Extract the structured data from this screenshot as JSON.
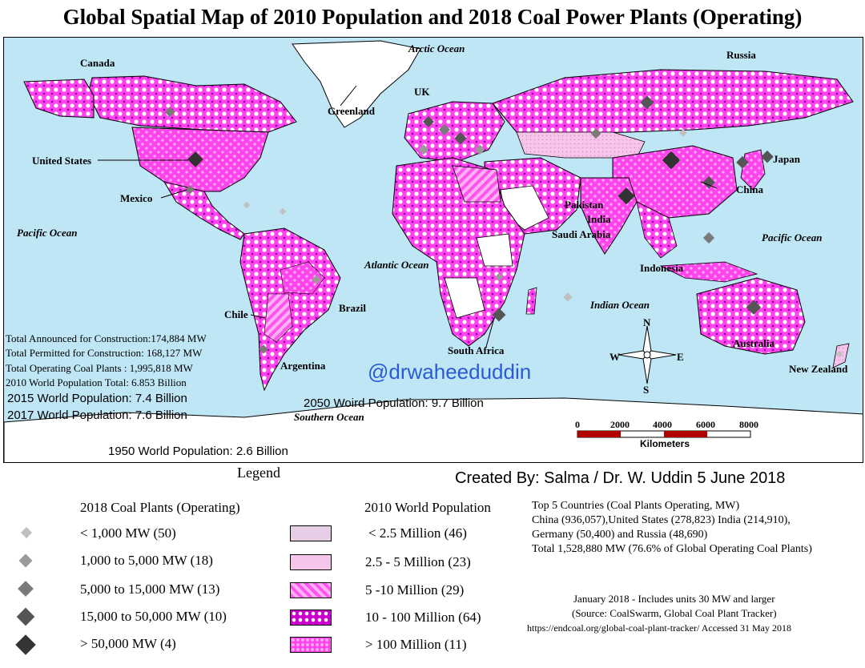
{
  "title": "Global Spatial Map of 2010 Population and 2018 Coal Power Plants (Operating)",
  "watermark": "@drwaheeduddin",
  "countries": {
    "canada": "Canada",
    "united_states": "United States",
    "mexico": "Mexico",
    "chile": "Chile",
    "brazil": "Brazil",
    "argentina": "Argentina",
    "greenland": "Greenland",
    "uk": "UK",
    "russia": "Russia",
    "japan": "Japan",
    "china": "China",
    "pakistan": "Pakistan",
    "india": "India",
    "saudi_arabia": "Saudi Arabia",
    "indonesia": "Indonesia",
    "south_africa": "South Africa",
    "australia": "Australia",
    "new_zealand": "New Zealand"
  },
  "oceans": {
    "arctic": "Arctic Ocean",
    "pacific_left": "Pacific  Ocean",
    "pacific_right": "Pacific Ocean",
    "atlantic": "Atlantic Ocean",
    "indian": "Indian Ocean",
    "southern": "Southern Ocean"
  },
  "stats": {
    "announced": "Total Announced for Construction:174,884 MW",
    "permitted": "Total Permitted for Construction: 168,127 MW",
    "operating": "Total Operating Coal Plants : 1,995,818 MW",
    "pop_2010": "2010 World Population Total: 6.853 Billion",
    "pop_2015": "2015 World Population: 7.4 Billion",
    "pop_2017": "2017 World Population: 7.6 Billion",
    "pop_2050": "2050 Woird Population: 9.7 Billion",
    "pop_1950": "1950 World Population: 2.6 Billion"
  },
  "compass": {
    "n": "N",
    "s": "S",
    "e": "E",
    "w": "W"
  },
  "scale": {
    "ticks": [
      "0",
      "2000",
      "4000",
      "6000",
      "8000"
    ],
    "unit": "Kilometers"
  },
  "legend": {
    "heading": "Legend",
    "created_by": "Created By: Salma / Dr. W. Uddin   5 June 2018",
    "coal_title": "2018 Coal Plants (Operating)",
    "coal_items": [
      {
        "label": "< 1,000 MW (50)",
        "color": "#c0c0c0"
      },
      {
        "label": "1,000 to 5,000 MW (18)",
        "color": "#9a9a9a"
      },
      {
        "label": "5,000 to 15,000 MW (13)",
        "color": "#7a7a7a"
      },
      {
        "label": "15,000 to 50,000 MW (10)",
        "color": "#555555"
      },
      {
        "label": "> 50,000 MW (4)",
        "color": "#333333"
      }
    ],
    "pop_title": "2010 World Population",
    "pop_items": [
      {
        "label": "< 2.5 Million (46)",
        "color": "#e6cfe6"
      },
      {
        "label": "2.5 - 5 Million (23)",
        "color": "#f5b8e6"
      },
      {
        "label": "5 -10 Million (29)",
        "color": "#ff66ee"
      },
      {
        "label": "10 - 100 Million (64)",
        "color": "#cc00cc"
      },
      {
        "label": "> 100 Million (11)",
        "color": "#ff33ee"
      }
    ],
    "top5_lines": [
      "Top 5 Countries (Coal Plants Operating, MW)",
      "China (936,057),United States (278,823) India (214,910),",
      "Germany (50,400) and Russia (48,690)",
      "Total 1,528,880 MW (76.6% of Global Operating Coal Plants)"
    ],
    "source_lines": [
      "January 2018 - Includes units 30 MW and larger",
      "(Source: CoalSwarm, Global Coal Plant Tracker)",
      "https://endcoal.org/global-coal-plant-tracker/  Accessed 31 May 2018"
    ]
  }
}
